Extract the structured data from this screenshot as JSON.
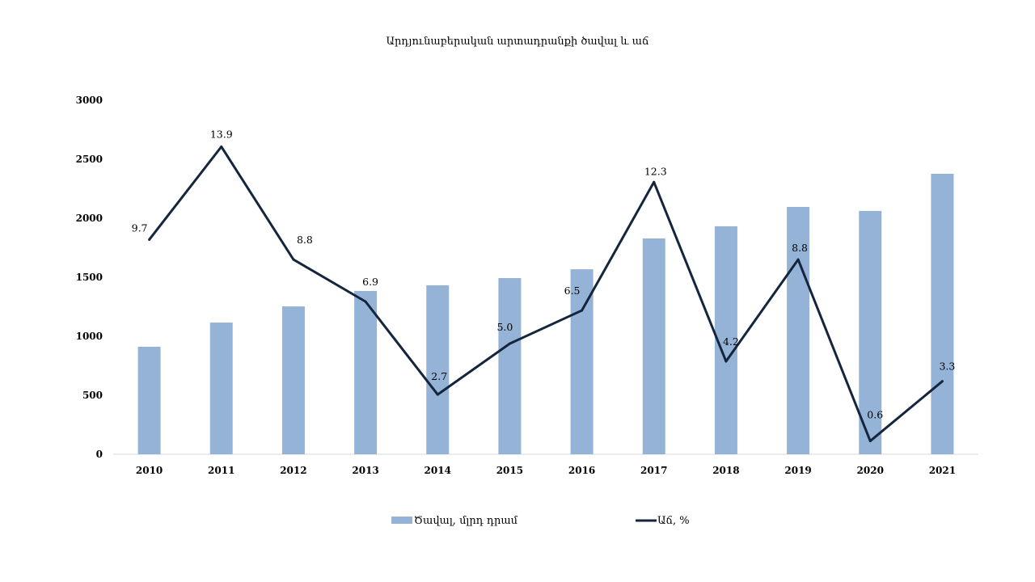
{
  "chart_data": {
    "type": "bar+line",
    "title": "Արդյունաբերական արտադրանքի ծավալ և աճ",
    "categories": [
      "2010",
      "2011",
      "2012",
      "2013",
      "2014",
      "2015",
      "2016",
      "2017",
      "2018",
      "2019",
      "2020",
      "2021"
    ],
    "series": [
      {
        "name": "Ծավալ, մլրդ դրամ",
        "type": "bar",
        "axis": "primary",
        "color": "#95B3D7",
        "values": [
          911,
          1116,
          1253,
          1384,
          1432,
          1493,
          1568,
          1829,
          1932,
          2096,
          2062,
          2377
        ]
      },
      {
        "name": "Աճ, %",
        "type": "line",
        "axis": "secondary",
        "color": "#14253D",
        "values": [
          9.7,
          13.9,
          8.8,
          6.9,
          2.7,
          5.0,
          6.5,
          12.3,
          4.2,
          8.8,
          0.6,
          3.3
        ],
        "labels": [
          "9.7",
          "13.9",
          "8.8",
          "6.9",
          "2.7",
          "5.0",
          "6.5",
          "12.3",
          "4.2",
          "8.8",
          "0.6",
          "3.3"
        ]
      }
    ],
    "ylim": [
      0,
      3000
    ],
    "yticks": [
      "0",
      "500",
      "1000",
      "1500",
      "2000",
      "2500",
      "3000"
    ],
    "y2lim": [
      0,
      16
    ],
    "grid": false,
    "legend": "bottom"
  }
}
